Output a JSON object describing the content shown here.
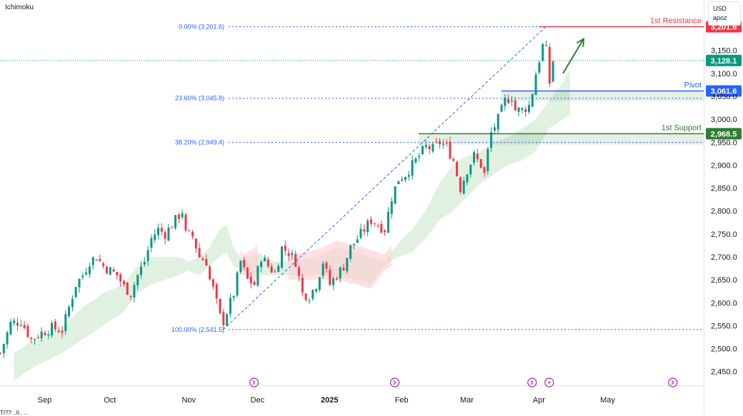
{
  "indicator": {
    "name": "Ichimoku"
  },
  "currency_box": {
    "currency": "USD",
    "mode": "apoz"
  },
  "bottom_caption": "TI?? ..II.. ..",
  "colors": {
    "up": "#089981",
    "down": "#f23645",
    "fib": "#2962ff",
    "resistance": "#f23645",
    "pivot": "#2962ff",
    "support": "#2e7d32",
    "cloud_bull": "#c8e6c9",
    "cloud_bear": "#ffcdd2",
    "arrow": "#2e7d32",
    "event_icon": "#9c27b0"
  },
  "chart_data": {
    "type": "candlestick",
    "title": "Ichimoku",
    "ylim": [
      2420,
      3260
    ],
    "y_ticks": [
      2450,
      2500,
      2550,
      2600,
      2650,
      2700,
      2750,
      2800,
      2850,
      2900,
      2950,
      3000,
      3050,
      3100,
      3150
    ],
    "y_tick_labels": [
      "2,450.0",
      "2,500.0",
      "2,550.0",
      "2,600.0",
      "2,650.0",
      "2,700.0",
      "2,750.0",
      "2,800.0",
      "2,850.0",
      "2,900.0",
      "2,950.0",
      "3,000.0",
      "3,050.0",
      "3,100.0",
      "3,150.0"
    ],
    "x_range": [
      0,
      205
    ],
    "x_ticks": [
      {
        "i": 13,
        "label": "Sep"
      },
      {
        "i": 32,
        "label": "Oct"
      },
      {
        "i": 55,
        "label": "Nov"
      },
      {
        "i": 75,
        "label": "Dec"
      },
      {
        "i": 96,
        "label": "2025"
      },
      {
        "i": 117,
        "label": "Feb"
      },
      {
        "i": 136,
        "label": "Mar"
      },
      {
        "i": 157,
        "label": "Apr"
      },
      {
        "i": 177,
        "label": "May"
      }
    ],
    "close_points": [
      [
        0,
        2490
      ],
      [
        3,
        2555
      ],
      [
        6,
        2560
      ],
      [
        9,
        2520
      ],
      [
        12,
        2535
      ],
      [
        15,
        2545
      ],
      [
        18,
        2540
      ],
      [
        20,
        2590
      ],
      [
        22,
        2640
      ],
      [
        24,
        2660
      ],
      [
        26,
        2690
      ],
      [
        28,
        2700
      ],
      [
        30,
        2680
      ],
      [
        32,
        2670
      ],
      [
        34,
        2660
      ],
      [
        36,
        2635
      ],
      [
        38,
        2620
      ],
      [
        40,
        2660
      ],
      [
        42,
        2690
      ],
      [
        44,
        2740
      ],
      [
        46,
        2760
      ],
      [
        48,
        2750
      ],
      [
        50,
        2770
      ],
      [
        52,
        2790
      ],
      [
        53,
        2800
      ],
      [
        54,
        2750
      ],
      [
        56,
        2745
      ],
      [
        58,
        2700
      ],
      [
        60,
        2690
      ],
      [
        61,
        2650
      ],
      [
        62,
        2630
      ],
      [
        63,
        2600
      ],
      [
        64,
        2570
      ],
      [
        65,
        2560
      ],
      [
        66,
        2580
      ],
      [
        68,
        2620
      ],
      [
        70,
        2690
      ],
      [
        72,
        2650
      ],
      [
        74,
        2640
      ],
      [
        76,
        2700
      ],
      [
        78,
        2680
      ],
      [
        80,
        2665
      ],
      [
        82,
        2720
      ],
      [
        84,
        2710
      ],
      [
        86,
        2690
      ],
      [
        88,
        2620
      ],
      [
        90,
        2615
      ],
      [
        92,
        2640
      ],
      [
        94,
        2690
      ],
      [
        96,
        2640
      ],
      [
        98,
        2660
      ],
      [
        100,
        2680
      ],
      [
        102,
        2720
      ],
      [
        104,
        2740
      ],
      [
        106,
        2760
      ],
      [
        108,
        2780
      ],
      [
        110,
        2770
      ],
      [
        112,
        2760
      ],
      [
        114,
        2830
      ],
      [
        116,
        2870
      ],
      [
        118,
        2880
      ],
      [
        120,
        2900
      ],
      [
        122,
        2920
      ],
      [
        124,
        2940
      ],
      [
        126,
        2935
      ],
      [
        128,
        2950
      ],
      [
        130,
        2940
      ],
      [
        132,
        2910
      ],
      [
        133,
        2880
      ],
      [
        134,
        2850
      ],
      [
        136,
        2890
      ],
      [
        138,
        2920
      ],
      [
        140,
        2900
      ],
      [
        141,
        2880
      ],
      [
        142,
        2930
      ],
      [
        143,
        2970
      ],
      [
        145,
        3000
      ],
      [
        147,
        3040
      ],
      [
        149,
        3050
      ],
      [
        150,
        3020
      ],
      [
        152,
        3020
      ],
      [
        154,
        3030
      ],
      [
        155,
        3060
      ],
      [
        156,
        3100
      ],
      [
        157,
        3130
      ],
      [
        158,
        3160
      ],
      [
        159,
        3150
      ],
      [
        160,
        3080
      ],
      [
        161,
        3128
      ]
    ],
    "cloud": {
      "top": [
        [
          4,
          2490
        ],
        [
          10,
          2520
        ],
        [
          18,
          2545
        ],
        [
          24,
          2590
        ],
        [
          30,
          2620
        ],
        [
          36,
          2640
        ],
        [
          40,
          2680
        ],
        [
          44,
          2700
        ],
        [
          48,
          2700
        ],
        [
          52,
          2700
        ],
        [
          55,
          2690
        ],
        [
          58,
          2700
        ],
        [
          61,
          2720
        ],
        [
          64,
          2760
        ],
        [
          66,
          2770
        ],
        [
          68,
          2720
        ],
        [
          71,
          2690
        ],
        [
          75,
          2710
        ],
        [
          80,
          2690
        ],
        [
          86,
          2690
        ],
        [
          92,
          2700
        ],
        [
          98,
          2720
        ],
        [
          104,
          2710
        ],
        [
          108,
          2700
        ],
        [
          112,
          2690
        ],
        [
          116,
          2730
        ],
        [
          120,
          2760
        ],
        [
          124,
          2800
        ],
        [
          128,
          2860
        ],
        [
          132,
          2900
        ],
        [
          136,
          2920
        ],
        [
          140,
          2930
        ],
        [
          144,
          2950
        ],
        [
          148,
          2960
        ],
        [
          152,
          2980
        ],
        [
          156,
          3000
        ],
        [
          160,
          3040
        ],
        [
          164,
          3080
        ],
        [
          166,
          3110
        ]
      ],
      "bottom": [
        [
          4,
          2430
        ],
        [
          10,
          2460
        ],
        [
          18,
          2490
        ],
        [
          24,
          2520
        ],
        [
          30,
          2550
        ],
        [
          36,
          2580
        ],
        [
          40,
          2620
        ],
        [
          44,
          2640
        ],
        [
          48,
          2650
        ],
        [
          52,
          2660
        ],
        [
          55,
          2670
        ],
        [
          58,
          2660
        ],
        [
          61,
          2680
        ],
        [
          64,
          2700
        ],
        [
          66,
          2710
        ],
        [
          68,
          2680
        ],
        [
          71,
          2670
        ],
        [
          75,
          2660
        ],
        [
          80,
          2660
        ],
        [
          86,
          2660
        ],
        [
          92,
          2660
        ],
        [
          98,
          2660
        ],
        [
          104,
          2650
        ],
        [
          108,
          2640
        ],
        [
          112,
          2680
        ],
        [
          116,
          2700
        ],
        [
          120,
          2710
        ],
        [
          124,
          2740
        ],
        [
          128,
          2780
        ],
        [
          132,
          2800
        ],
        [
          136,
          2830
        ],
        [
          140,
          2860
        ],
        [
          144,
          2880
        ],
        [
          148,
          2900
        ],
        [
          152,
          2910
        ],
        [
          156,
          2930
        ],
        [
          160,
          2980
        ],
        [
          164,
          3000
        ],
        [
          166,
          3010
        ]
      ],
      "bearish_ranges": [
        [
          70,
          75
        ],
        [
          84,
          114
        ]
      ]
    },
    "fibonacci": [
      {
        "label": "0.00% (3,201.6)",
        "value": 3201.6
      },
      {
        "label": "23.60% (3,045.8)",
        "value": 3045.8
      },
      {
        "label": "38.20% (2,949.4)",
        "value": 2949.4
      },
      {
        "label": "100.00% (2,541.5)",
        "value": 2541.5
      }
    ],
    "fib_trend": {
      "from": [
        65,
        2541.5
      ],
      "to": [
        159,
        3201.6
      ]
    },
    "levels": [
      {
        "name": "1st Resistance",
        "value": 3201.6,
        "tag": "3,201.6",
        "from_i": 157
      },
      {
        "name": "Pivot",
        "value": 3061.6,
        "tag": "3,061.6",
        "from_i": 146
      },
      {
        "name": "1st Support",
        "value": 2968.5,
        "tag": "2,968.5",
        "from_i": 122
      }
    ],
    "last_price": {
      "value": 3128.1,
      "tag": "3,128.1"
    },
    "projection_arrow": {
      "from": [
        164,
        3100
      ],
      "to": [
        170,
        3175
      ]
    },
    "event_icons": [
      74,
      115,
      155,
      160,
      196
    ]
  }
}
